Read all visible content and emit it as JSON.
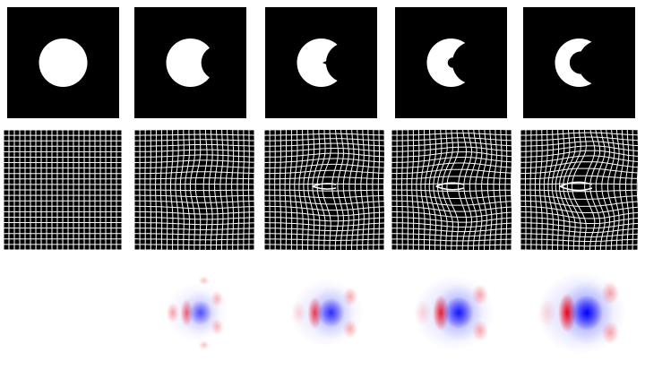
{
  "figure": {
    "rows": [
      {
        "kind": "shape-image",
        "panels": [
          {
            "shape": "disk",
            "bite": 0.0,
            "inner_hole": 0.0
          },
          {
            "shape": "disk",
            "bite": 0.35,
            "inner_hole": 0.0
          },
          {
            "shape": "disk",
            "bite": 0.6,
            "inner_hole": 0.0
          },
          {
            "shape": "disk",
            "bite": 0.75,
            "inner_hole": 0.25
          },
          {
            "shape": "disk",
            "bite": 0.85,
            "inner_hole": 0.55
          }
        ]
      },
      {
        "kind": "deformation-grid",
        "panels": [
          {
            "deformation": 0.0
          },
          {
            "deformation": 0.35
          },
          {
            "deformation": 0.6
          },
          {
            "deformation": 0.8
          },
          {
            "deformation": 1.0
          }
        ]
      },
      {
        "kind": "signed-field",
        "panels": [
          {
            "intensity": 0.0
          },
          {
            "intensity": 0.35
          },
          {
            "intensity": 0.6
          },
          {
            "intensity": 0.8
          },
          {
            "intensity": 1.0
          }
        ]
      }
    ],
    "colors": {
      "background": "#000000",
      "foreground": "#ffffff",
      "grid_line": "#ffffff",
      "positive": "#ff0000",
      "negative": "#0000ff",
      "page": "#ffffff"
    }
  }
}
